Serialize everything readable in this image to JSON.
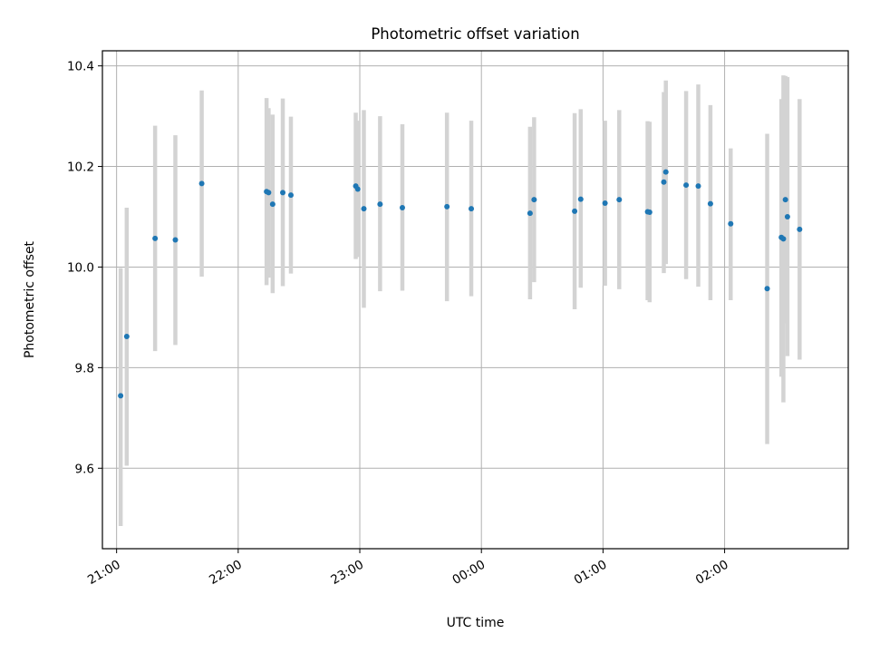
{
  "chart_data": {
    "type": "scatter",
    "title": "Photometric offset variation",
    "xlabel": "UTC time",
    "ylabel": "Photometric offset",
    "x_axis_kind": "time",
    "xlim": [
      "20:53",
      "03:01"
    ],
    "ylim": [
      9.44,
      10.43
    ],
    "x_ticks": [
      "21:00",
      "22:00",
      "23:00",
      "00:00",
      "01:00",
      "02:00"
    ],
    "y_ticks": [
      9.6,
      9.8,
      10.0,
      10.2,
      10.4
    ],
    "grid": true,
    "colors": {
      "point": "#1f77b4",
      "errorbar": "#d3d3d3",
      "grid": "#b0b0b0"
    },
    "series": [
      {
        "points": [
          {
            "t": "21:02",
            "y": 9.744,
            "lo": 9.485,
            "hi": 9.998
          },
          {
            "t": "21:05",
            "y": 9.862,
            "lo": 9.605,
            "hi": 10.118
          },
          {
            "t": "21:19",
            "y": 10.057,
            "lo": 9.833,
            "hi": 10.281
          },
          {
            "t": "21:29",
            "y": 10.054,
            "lo": 9.845,
            "hi": 10.262
          },
          {
            "t": "21:42",
            "y": 10.166,
            "lo": 9.981,
            "hi": 10.351
          },
          {
            "t": "22:14",
            "y": 10.15,
            "lo": 9.964,
            "hi": 10.336
          },
          {
            "t": "22:15",
            "y": 10.148,
            "lo": 9.979,
            "hi": 10.316
          },
          {
            "t": "22:17",
            "y": 10.125,
            "lo": 9.948,
            "hi": 10.303
          },
          {
            "t": "22:22",
            "y": 10.148,
            "lo": 9.962,
            "hi": 10.335
          },
          {
            "t": "22:26",
            "y": 10.143,
            "lo": 9.987,
            "hi": 10.299
          },
          {
            "t": "22:58",
            "y": 10.161,
            "lo": 10.016,
            "hi": 10.307
          },
          {
            "t": "22:59",
            "y": 10.155,
            "lo": 10.02,
            "hi": 10.291
          },
          {
            "t": "23:02",
            "y": 10.116,
            "lo": 9.919,
            "hi": 10.312
          },
          {
            "t": "23:10",
            "y": 10.125,
            "lo": 9.952,
            "hi": 10.3
          },
          {
            "t": "23:21",
            "y": 10.118,
            "lo": 9.953,
            "hi": 10.284
          },
          {
            "t": "23:43",
            "y": 10.12,
            "lo": 9.932,
            "hi": 10.307
          },
          {
            "t": "23:55",
            "y": 10.116,
            "lo": 9.942,
            "hi": 10.291
          },
          {
            "t": "00:24",
            "y": 10.107,
            "lo": 9.936,
            "hi": 10.279
          },
          {
            "t": "00:26",
            "y": 10.134,
            "lo": 9.97,
            "hi": 10.298
          },
          {
            "t": "00:46",
            "y": 10.111,
            "lo": 9.916,
            "hi": 10.306
          },
          {
            "t": "00:49",
            "y": 10.135,
            "lo": 9.959,
            "hi": 10.314
          },
          {
            "t": "01:01",
            "y": 10.127,
            "lo": 9.963,
            "hi": 10.291
          },
          {
            "t": "01:08",
            "y": 10.134,
            "lo": 9.956,
            "hi": 10.312
          },
          {
            "t": "01:22",
            "y": 10.11,
            "lo": 9.934,
            "hi": 10.29
          },
          {
            "t": "01:23",
            "y": 10.109,
            "lo": 9.93,
            "hi": 10.289
          },
          {
            "t": "01:30",
            "y": 10.169,
            "lo": 9.988,
            "hi": 10.348
          },
          {
            "t": "01:31",
            "y": 10.189,
            "lo": 10.006,
            "hi": 10.371
          },
          {
            "t": "01:41",
            "y": 10.163,
            "lo": 9.976,
            "hi": 10.35
          },
          {
            "t": "01:47",
            "y": 10.161,
            "lo": 9.961,
            "hi": 10.363
          },
          {
            "t": "01:53",
            "y": 10.126,
            "lo": 9.934,
            "hi": 10.322
          },
          {
            "t": "02:03",
            "y": 10.086,
            "lo": 9.934,
            "hi": 10.236
          },
          {
            "t": "02:21",
            "y": 9.957,
            "lo": 9.648,
            "hi": 10.265
          },
          {
            "t": "02:28",
            "y": 10.059,
            "lo": 9.782,
            "hi": 10.334
          },
          {
            "t": "02:29",
            "y": 10.056,
            "lo": 9.731,
            "hi": 10.381
          },
          {
            "t": "02:30",
            "y": 10.134,
            "lo": 9.888,
            "hi": 10.38
          },
          {
            "t": "02:31",
            "y": 10.1,
            "lo": 9.823,
            "hi": 10.378
          },
          {
            "t": "02:37",
            "y": 10.075,
            "lo": 9.816,
            "hi": 10.334
          }
        ]
      }
    ]
  }
}
